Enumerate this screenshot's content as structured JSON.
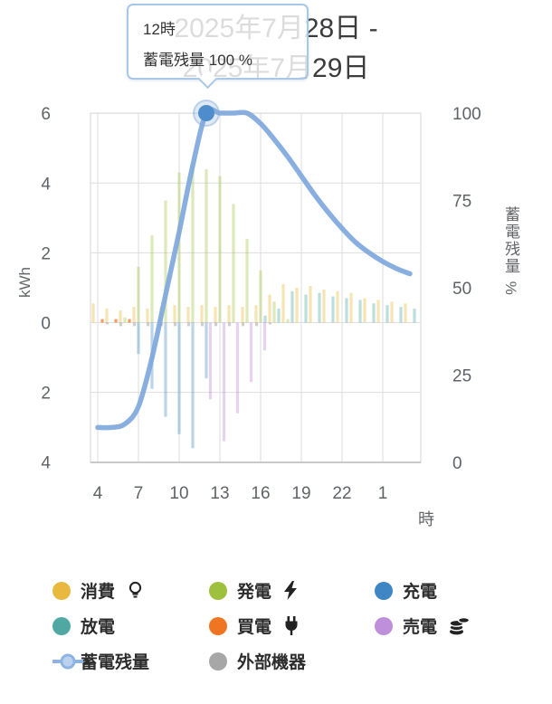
{
  "header": {
    "title_line1": "2025年7月28日 -",
    "title_line2": "2025年7月29日"
  },
  "tooltip": {
    "hour_label": "12時",
    "series_label": "蓄電残量",
    "value_label": "100 %"
  },
  "axes": {
    "left_title": "kWh",
    "left_ticks": [
      "6",
      "4",
      "2",
      "0",
      "2",
      "4"
    ],
    "left_tick_values": [
      6,
      4,
      2,
      0,
      -2,
      -4
    ],
    "right_title": "蓄電残量 %",
    "right_ticks": [
      "100",
      "75",
      "50",
      "25",
      "0"
    ],
    "right_tick_values": [
      100,
      75,
      50,
      25,
      0
    ],
    "x_title": "時",
    "x_ticks": [
      "4",
      "7",
      "10",
      "13",
      "16",
      "19",
      "22",
      "1"
    ],
    "x_tick_hours": [
      4,
      7,
      10,
      13,
      16,
      19,
      22,
      25
    ]
  },
  "chart_data": {
    "type": "bar+line",
    "title": "2025年7月28日 - 2025年7月29日",
    "x_hours": [
      4,
      5,
      6,
      7,
      8,
      9,
      10,
      11,
      12,
      13,
      14,
      15,
      16,
      17,
      18,
      19,
      20,
      21,
      22,
      23,
      24,
      25,
      26,
      27
    ],
    "ylim_left_kwh": [
      -4,
      6
    ],
    "ylim_right_pct": [
      0,
      100
    ],
    "grid": true,
    "series": [
      {
        "id": "consumption",
        "name": "消費",
        "type": "bar",
        "axis": "left",
        "color": "#E8BC41",
        "opacity": 0.4,
        "values": [
          0.55,
          0.4,
          0.35,
          0.45,
          0.4,
          0.45,
          0.5,
          0.45,
          0.5,
          0.45,
          0.5,
          0.45,
          0.5,
          0.8,
          1.1,
          1.0,
          1.05,
          0.95,
          0.9,
          0.85,
          0.7,
          0.65,
          0.6,
          0.55
        ]
      },
      {
        "id": "generation",
        "name": "発電",
        "type": "bar",
        "axis": "left",
        "color": "#9DC13C",
        "opacity": 0.35,
        "values": [
          0,
          0,
          0.15,
          1.6,
          2.5,
          3.5,
          4.3,
          4.5,
          4.4,
          4.2,
          3.4,
          2.4,
          1.5,
          0.6,
          0.1,
          0,
          0,
          0,
          0,
          0,
          0,
          0,
          0,
          0
        ]
      },
      {
        "id": "buy",
        "name": "買電",
        "type": "bar",
        "axis": "left",
        "color": "#F07523",
        "opacity": 0.7,
        "values": [
          0.1,
          0.1,
          0.1,
          0,
          0,
          0,
          0,
          0,
          0,
          0,
          0,
          0,
          0,
          0,
          0,
          0,
          0,
          0,
          0,
          0,
          0,
          0,
          0,
          0
        ]
      },
      {
        "id": "discharge",
        "name": "放電",
        "type": "bar",
        "axis": "left",
        "color": "#4FA8A2",
        "opacity": 0.38,
        "values": [
          0,
          0,
          0,
          0,
          0,
          0,
          0,
          0,
          0,
          0,
          0,
          0,
          0.2,
          0.4,
          0.9,
          0.8,
          0.85,
          0.75,
          0.7,
          0.65,
          0.55,
          0.5,
          0.45,
          0.4
        ]
      },
      {
        "id": "charge",
        "name": "充電",
        "type": "bar",
        "axis": "left",
        "color": "#4D8FC9",
        "opacity": 0.38,
        "values": [
          0,
          0,
          0,
          -0.9,
          -1.9,
          -2.7,
          -3.2,
          -3.6,
          -1.6,
          0,
          0,
          0,
          0,
          0,
          0,
          0,
          0,
          0,
          0,
          0,
          0,
          0,
          0,
          0
        ]
      },
      {
        "id": "sell",
        "name": "売電",
        "type": "bar",
        "axis": "left",
        "color": "#BC8BD9",
        "opacity": 0.38,
        "values": [
          0,
          0,
          0,
          0,
          0,
          0,
          0,
          0,
          -2.2,
          -3.4,
          -2.6,
          -1.7,
          -0.8,
          0,
          0,
          0,
          0,
          0,
          0,
          0,
          0,
          0,
          0,
          0
        ]
      },
      {
        "id": "external",
        "name": "外部機器",
        "type": "bar",
        "axis": "left",
        "color": "#9E9E9E",
        "opacity": 0.5,
        "values": [
          0,
          -0.05,
          -0.1,
          -0.1,
          -0.1,
          -0.1,
          -0.1,
          -0.1,
          -0.1,
          -0.1,
          -0.1,
          -0.1,
          -0.1,
          -0.05,
          0,
          0,
          0,
          0,
          0,
          0,
          0,
          0,
          0,
          0
        ]
      },
      {
        "id": "soc",
        "name": "蓄電残量",
        "type": "line",
        "axis": "right",
        "color": "#7BA6DB",
        "values": [
          10,
          10,
          11,
          16,
          30,
          48,
          66,
          85,
          100,
          100,
          100,
          100,
          97,
          92.5,
          87.5,
          82,
          76.5,
          71.5,
          67,
          63,
          60,
          57.5,
          55.5,
          54
        ]
      }
    ],
    "highlight": {
      "series": "soc",
      "hour": 12,
      "value": 100,
      "label": "12時 蓄電残量 100 %"
    }
  },
  "legend": {
    "items": [
      {
        "id": "consumption",
        "label": "消費",
        "color": "#E8B93E",
        "icon": "lightbulb",
        "marker": "circle"
      },
      {
        "id": "generation",
        "label": "発電",
        "color": "#9DC13C",
        "icon": "bolt",
        "marker": "circle"
      },
      {
        "id": "charge",
        "label": "充電",
        "color": "#3E86C4",
        "icon": null,
        "marker": "circle"
      },
      {
        "id": "discharge",
        "label": "放電",
        "color": "#4FA8A2",
        "icon": null,
        "marker": "circle"
      },
      {
        "id": "buy",
        "label": "買電",
        "color": "#F07523",
        "icon": "plug",
        "marker": "circle"
      },
      {
        "id": "sell",
        "label": "売電",
        "color": "#C08FDC",
        "icon": "coins",
        "marker": "circle"
      },
      {
        "id": "soc",
        "label": "蓄電残量",
        "color": "#8FB4E3",
        "icon": null,
        "marker": "line"
      },
      {
        "id": "external",
        "label": "外部機器",
        "color": "#A7A7A7",
        "icon": null,
        "marker": "circle"
      }
    ]
  }
}
